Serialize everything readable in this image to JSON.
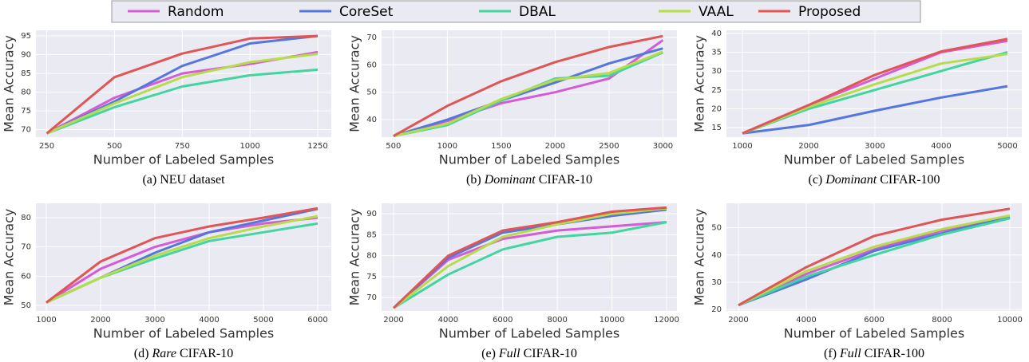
{
  "chart_data": [
    {
      "type": "line",
      "caption": {
        "label": "(a)",
        "text": "NEU dataset"
      },
      "xlabel": "Number of Labeled Samples",
      "ylabel": "Mean Accuracy",
      "x": [
        250,
        500,
        750,
        1000,
        1250
      ],
      "xlim": [
        210,
        1300
      ],
      "xticks": [
        250,
        500,
        750,
        1000,
        1250
      ],
      "ylim": [
        68,
        96.5
      ],
      "yticks": [
        70,
        75,
        80,
        85,
        90,
        95
      ],
      "grid": true,
      "series": [
        {
          "name": "Random",
          "color": "#d65bd6",
          "values": [
            69,
            78.5,
            85,
            87.5,
            90.7
          ]
        },
        {
          "name": "CoreSet",
          "color": "#5577dd",
          "values": [
            69,
            77.5,
            87,
            93,
            95
          ]
        },
        {
          "name": "DBAL",
          "color": "#44d4a0",
          "values": [
            69,
            76,
            81.5,
            84.5,
            86
          ]
        },
        {
          "name": "VAAL",
          "color": "#b7dc4a",
          "values": [
            69,
            77,
            84,
            88,
            90.2
          ]
        },
        {
          "name": "Proposed",
          "color": "#e05555",
          "values": [
            69,
            84,
            90.3,
            94.3,
            95
          ]
        }
      ]
    },
    {
      "type": "line",
      "caption": {
        "label": "(b)",
        "italic": "Dominant",
        "text": "CIFAR-10"
      },
      "xlabel": "Number of Labeled Samples",
      "ylabel": "Mean Accuracy",
      "x": [
        500,
        1000,
        1500,
        2000,
        2500,
        3000
      ],
      "xlim": [
        390,
        3130
      ],
      "xticks": [
        500,
        1000,
        1500,
        2000,
        2500,
        3000
      ],
      "ylim": [
        33.6,
        72.6
      ],
      "yticks": [
        40,
        50,
        60,
        70
      ],
      "grid": true,
      "series": [
        {
          "name": "Random",
          "color": "#d65bd6",
          "values": [
            34,
            39.5,
            46,
            50,
            55,
            69
          ]
        },
        {
          "name": "CoreSet",
          "color": "#5577dd",
          "values": [
            34,
            40,
            47,
            53.5,
            60.5,
            66
          ]
        },
        {
          "name": "DBAL",
          "color": "#44d4a0",
          "values": [
            34,
            38,
            47,
            55,
            56,
            64.5
          ]
        },
        {
          "name": "VAAL",
          "color": "#b7dc4a",
          "values": [
            34,
            38.5,
            47.5,
            54.5,
            57,
            64.8
          ]
        },
        {
          "name": "Proposed",
          "color": "#e05555",
          "values": [
            34,
            45,
            54,
            61,
            66.5,
            70.5
          ]
        }
      ]
    },
    {
      "type": "line",
      "caption": {
        "label": "(c)",
        "italic": "Dominant",
        "text": "CIFAR-100"
      },
      "xlabel": "Number of Labeled Samples",
      "ylabel": "Mean Accuracy",
      "x": [
        1000,
        2000,
        3000,
        4000,
        5000
      ],
      "xlim": [
        759,
        5217
      ],
      "xticks": [
        1000,
        2000,
        3000,
        4000,
        5000
      ],
      "ylim": [
        12.5,
        40.8
      ],
      "yticks": [
        15,
        20,
        25,
        30,
        35,
        40
      ],
      "grid": true,
      "series": [
        {
          "name": "Random",
          "color": "#d65bd6",
          "values": [
            13.5,
            21,
            28,
            35,
            38
          ]
        },
        {
          "name": "CoreSet",
          "color": "#5577dd",
          "values": [
            13.5,
            15.7,
            19.5,
            23,
            26
          ]
        },
        {
          "name": "DBAL",
          "color": "#44d4a0",
          "values": [
            13.5,
            20,
            25,
            30,
            35
          ]
        },
        {
          "name": "VAAL",
          "color": "#b7dc4a",
          "values": [
            13.5,
            20.5,
            26.5,
            32,
            34.5
          ]
        },
        {
          "name": "Proposed",
          "color": "#e05555",
          "values": [
            13.5,
            21,
            29,
            35.2,
            38.5
          ]
        }
      ]
    },
    {
      "type": "line",
      "caption": {
        "label": "(d)",
        "italic": "Rare",
        "text": "CIFAR-10"
      },
      "xlabel": "Number of Labeled Samples",
      "ylabel": "Mean Accuracy",
      "x": [
        1000,
        2000,
        3000,
        4000,
        5000,
        6000
      ],
      "xlim": [
        809,
        6250
      ],
      "xticks": [
        1000,
        2000,
        3000,
        4000,
        5000,
        6000
      ],
      "ylim": [
        48.1,
        84.9
      ],
      "yticks": [
        50,
        60,
        70,
        80
      ],
      "grid": true,
      "series": [
        {
          "name": "Random",
          "color": "#d65bd6",
          "values": [
            51,
            62.5,
            70,
            75,
            78,
            80
          ]
        },
        {
          "name": "CoreSet",
          "color": "#5577dd",
          "values": [
            51,
            59.5,
            68,
            75,
            79,
            83
          ]
        },
        {
          "name": "DBAL",
          "color": "#44d4a0",
          "values": [
            51,
            59.5,
            66,
            72,
            75,
            78
          ]
        },
        {
          "name": "VAAL",
          "color": "#b7dc4a",
          "values": [
            51,
            59.5,
            67,
            73,
            77,
            80.5
          ]
        },
        {
          "name": "Proposed",
          "color": "#e05555",
          "values": [
            51,
            65,
            73,
            77,
            80,
            83.2
          ]
        }
      ]
    },
    {
      "type": "line",
      "caption": {
        "label": "(e)",
        "italic": "Full",
        "text": "CIFAR-10"
      },
      "xlabel": "Number of Labeled Samples",
      "ylabel": "Mean Accuracy",
      "x": [
        2000,
        4000,
        6000,
        8000,
        10000,
        12000
      ],
      "xlim": [
        1562,
        12380
      ],
      "xticks": [
        2000,
        4000,
        6000,
        8000,
        10000,
        12000
      ],
      "ylim": [
        66.8,
        92.5
      ],
      "yticks": [
        70,
        75,
        80,
        85,
        90
      ],
      "grid": true,
      "series": [
        {
          "name": "Random",
          "color": "#d65bd6",
          "values": [
            67.5,
            79,
            84,
            86,
            87,
            88
          ]
        },
        {
          "name": "CoreSet",
          "color": "#5577dd",
          "values": [
            67.5,
            79.5,
            85.5,
            87.5,
            89.5,
            91
          ]
        },
        {
          "name": "DBAL",
          "color": "#44d4a0",
          "values": [
            67.5,
            75.5,
            81.5,
            84.5,
            85.5,
            88
          ]
        },
        {
          "name": "VAAL",
          "color": "#b7dc4a",
          "values": [
            67.5,
            77.5,
            84.5,
            87.5,
            90,
            91.3
          ]
        },
        {
          "name": "Proposed",
          "color": "#e05555",
          "values": [
            67.5,
            80,
            86,
            88,
            90.5,
            91.5
          ]
        }
      ]
    },
    {
      "type": "line",
      "caption": {
        "label": "(f)",
        "italic": "Full",
        "text": "CIFAR-100"
      },
      "xlabel": "Number of Labeled Samples",
      "ylabel": "Mean Accuracy",
      "x": [
        2000,
        4000,
        6000,
        8000,
        10000
      ],
      "xlim": [
        1647,
        10353
      ],
      "xticks": [
        2000,
        4000,
        6000,
        8000,
        10000
      ],
      "ylim": [
        19.4,
        59
      ],
      "yticks": [
        20,
        30,
        40,
        50
      ],
      "grid": true,
      "series": [
        {
          "name": "Random",
          "color": "#d65bd6",
          "values": [
            21.5,
            33,
            42,
            49,
            54
          ]
        },
        {
          "name": "CoreSet",
          "color": "#5577dd",
          "values": [
            21.5,
            31,
            41.5,
            48,
            54
          ]
        },
        {
          "name": "DBAL",
          "color": "#44d4a0",
          "values": [
            21.5,
            32,
            40,
            47.5,
            53.5
          ]
        },
        {
          "name": "VAAL",
          "color": "#b7dc4a",
          "values": [
            21.5,
            34,
            43,
            49.5,
            54.5
          ]
        },
        {
          "name": "Proposed",
          "color": "#e05555",
          "values": [
            21.5,
            35.5,
            47,
            53,
            57
          ]
        }
      ]
    }
  ]
}
